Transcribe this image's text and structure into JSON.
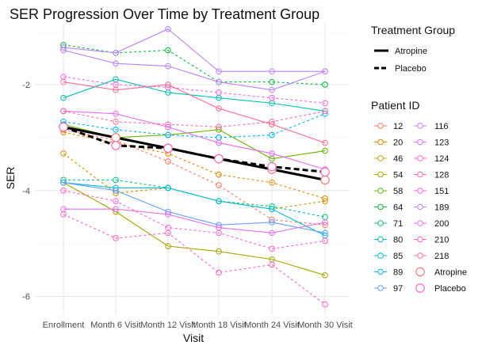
{
  "chart_data": {
    "type": "line",
    "title": "SER Progression Over Time by Treatment Group",
    "xlabel": "Visit",
    "ylabel": "SER",
    "categories": [
      "Enrollment",
      "Month 6 Visit",
      "Month 12 Visit",
      "Month 18 Visit",
      "Month 24 Visit",
      "Month 30 Visit"
    ],
    "ylim": [
      -6.35,
      -0.85
    ],
    "yticks": [
      -2,
      -4,
      -6
    ],
    "grid": true,
    "legend_title_group": "Treatment Group",
    "legend_title_patient": "Patient ID",
    "groups": [
      {
        "name": "Atropine",
        "dash": "solid"
      },
      {
        "name": "Placebo",
        "dash": "dashed"
      }
    ],
    "series": [
      {
        "name": "12",
        "color": "#F8766D",
        "group": "Placebo",
        "values": [
          -2.85,
          -3.05,
          -3.45,
          -3.9,
          -4.55,
          -4.65
        ]
      },
      {
        "name": "20",
        "color": "#E58700",
        "group": "Placebo",
        "values": [
          -2.9,
          -3.1,
          -3.3,
          -3.7,
          -3.85,
          -4.15
        ]
      },
      {
        "name": "46",
        "color": "#C99800",
        "group": "Placebo",
        "values": [
          -3.3,
          -4.05,
          -3.95,
          -4.2,
          -4.35,
          -4.2
        ]
      },
      {
        "name": "54",
        "color": "#A3A500",
        "group": "Atropine",
        "values": [
          -3.85,
          -4.4,
          -5.05,
          -5.15,
          -5.3,
          -5.6
        ]
      },
      {
        "name": "58",
        "color": "#6BB100",
        "group": "Atropine",
        "values": [
          -2.75,
          -3.0,
          -2.95,
          -2.85,
          -3.4,
          -3.25
        ]
      },
      {
        "name": "64",
        "color": "#00BA38",
        "group": "Placebo",
        "values": [
          -1.25,
          -1.4,
          -1.35,
          -1.95,
          -1.95,
          -2.0
        ]
      },
      {
        "name": "71",
        "color": "#00BF7D",
        "group": "Placebo",
        "values": [
          -3.8,
          -3.8,
          -3.95,
          -4.2,
          -4.3,
          -4.5
        ]
      },
      {
        "name": "80",
        "color": "#00C0AF",
        "group": "Atropine",
        "values": [
          -2.25,
          -1.9,
          -2.15,
          -2.25,
          -2.35,
          -2.5
        ]
      },
      {
        "name": "85",
        "color": "#00BCD8",
        "group": "Atropine",
        "values": [
          -3.85,
          -3.95,
          -3.95,
          -4.2,
          -4.35,
          -4.85
        ]
      },
      {
        "name": "89",
        "color": "#00B0F6",
        "group": "Placebo",
        "values": [
          -2.7,
          -2.85,
          -2.95,
          -3.0,
          -2.95,
          -2.55
        ]
      },
      {
        "name": "97",
        "color": "#619CFF",
        "group": "Atropine",
        "values": [
          -3.85,
          -4.0,
          -4.4,
          -4.65,
          -4.6,
          -4.8
        ]
      },
      {
        "name": "116",
        "color": "#B983FF",
        "group": "Atropine",
        "values": [
          -1.3,
          -1.4,
          -0.95,
          -1.75,
          -1.75,
          -1.75
        ]
      },
      {
        "name": "123",
        "color": "#E76BF3",
        "group": "Atropine",
        "values": [
          -2.5,
          -2.55,
          -2.8,
          -3.1,
          -3.3,
          -3.6
        ]
      },
      {
        "name": "124",
        "color": "#FD61D1",
        "group": "Placebo",
        "values": [
          -4.0,
          -4.2,
          -4.7,
          -4.8,
          -5.1,
          -4.95
        ]
      },
      {
        "name": "128",
        "color": "#FF67A4",
        "group": "Placebo",
        "values": [
          -2.5,
          -2.7,
          -2.75,
          -2.8,
          -2.7,
          -2.5
        ]
      },
      {
        "name": "151",
        "color": "#F564E3",
        "group": "Placebo",
        "values": [
          -1.85,
          -2.0,
          -2.05,
          -2.15,
          -2.25,
          -2.35
        ]
      },
      {
        "name": "189",
        "color": "#B983FF",
        "group": "Atropine",
        "values": [
          -1.35,
          -1.6,
          -1.65,
          -1.95,
          -2.1,
          -1.75
        ]
      },
      {
        "name": "200",
        "color": "#E76BF3",
        "group": "Atropine",
        "values": [
          -4.35,
          -4.35,
          -4.45,
          -4.7,
          -4.8,
          -4.6
        ]
      },
      {
        "name": "210",
        "color": "#FF62BC",
        "group": "Placebo",
        "values": [
          -4.45,
          -4.9,
          -4.8,
          -5.55,
          -5.4,
          -6.15
        ]
      },
      {
        "name": "218",
        "color": "#FF6C91",
        "group": "Atropine",
        "values": [
          -1.95,
          -2.1,
          -2.0,
          -2.45,
          -2.75,
          -3.1
        ]
      }
    ],
    "group_means": [
      {
        "name": "Atropine",
        "values": [
          -2.8,
          -3.0,
          -3.2,
          -3.4,
          -3.6,
          -3.8
        ]
      },
      {
        "name": "Placebo",
        "values": [
          -2.8,
          -3.15,
          -3.2,
          -3.4,
          -3.55,
          -3.65
        ]
      }
    ]
  }
}
